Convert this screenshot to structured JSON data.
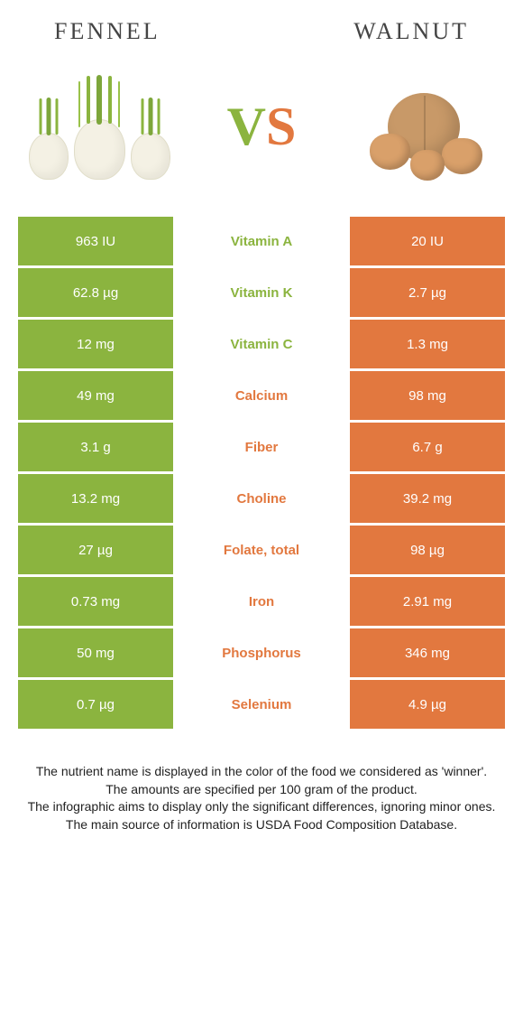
{
  "header": {
    "left": "FENNEL",
    "right": "WALNUT"
  },
  "vs": {
    "v": "V",
    "s": "S"
  },
  "colors": {
    "fennel": "#8bb43f",
    "walnut": "#e2783f"
  },
  "rows": [
    {
      "left": "963 IU",
      "nutrient": "Vitamin A",
      "right": "20 IU",
      "winner": "fennel"
    },
    {
      "left": "62.8 µg",
      "nutrient": "Vitamin K",
      "right": "2.7 µg",
      "winner": "fennel"
    },
    {
      "left": "12 mg",
      "nutrient": "Vitamin C",
      "right": "1.3 mg",
      "winner": "fennel"
    },
    {
      "left": "49 mg",
      "nutrient": "Calcium",
      "right": "98 mg",
      "winner": "walnut"
    },
    {
      "left": "3.1 g",
      "nutrient": "Fiber",
      "right": "6.7 g",
      "winner": "walnut"
    },
    {
      "left": "13.2 mg",
      "nutrient": "Choline",
      "right": "39.2 mg",
      "winner": "walnut"
    },
    {
      "left": "27 µg",
      "nutrient": "Folate, total",
      "right": "98 µg",
      "winner": "walnut"
    },
    {
      "left": "0.73 mg",
      "nutrient": "Iron",
      "right": "2.91 mg",
      "winner": "walnut"
    },
    {
      "left": "50 mg",
      "nutrient": "Phosphorus",
      "right": "346 mg",
      "winner": "walnut"
    },
    {
      "left": "0.7 µg",
      "nutrient": "Selenium",
      "right": "4.9 µg",
      "winner": "walnut"
    }
  ],
  "notes": [
    "The nutrient name is displayed in the color of the food we considered as 'winner'.",
    "The amounts are specified per 100 gram of the product.",
    "The infographic aims to display only the significant differences, ignoring minor ones.",
    "The main source of information is USDA Food Composition Database."
  ]
}
